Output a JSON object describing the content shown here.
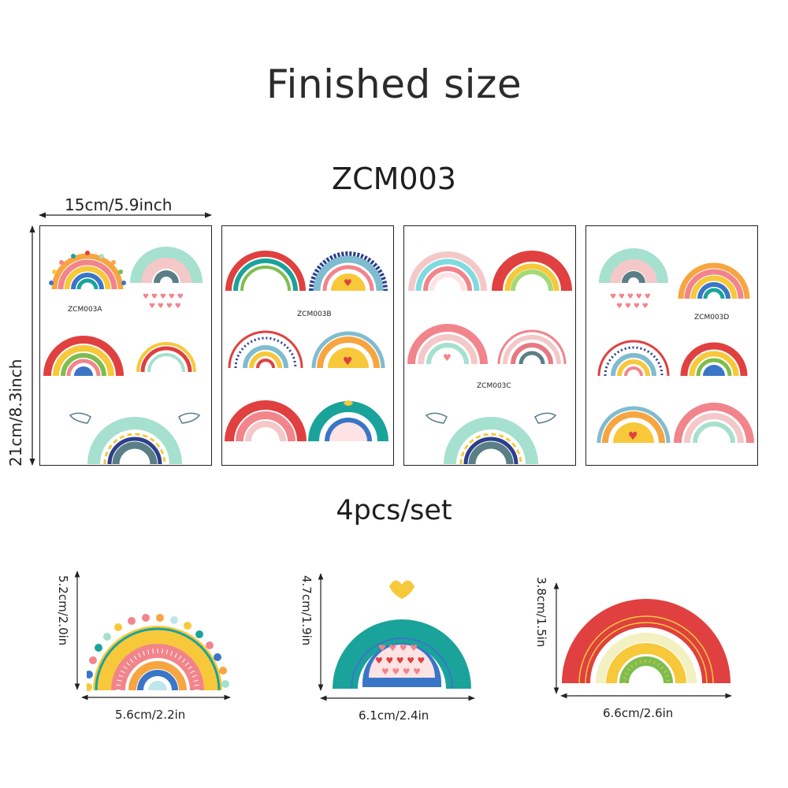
{
  "title": "Finished size",
  "product_code": "ZCM003",
  "sheet_width_label": "15cm/5.9inch",
  "sheet_height_label": "21cm/8.3inch",
  "sheets": [
    {
      "label": "ZCM003A"
    },
    {
      "label": "ZCM003B"
    },
    {
      "label": "ZCM003C"
    },
    {
      "label": "ZCM003D"
    }
  ],
  "set_label": "4pcs/set",
  "pieces": [
    {
      "height_label": "5.2cm/2.0in",
      "width_label": "5.6cm/2.2in"
    },
    {
      "height_label": "4.7cm/1.9in",
      "width_label": "6.1cm/2.4in"
    },
    {
      "height_label": "3.8cm/1.5in",
      "width_label": "6.6cm/2.6in"
    }
  ],
  "colors": {
    "red": "#e0403f",
    "orange": "#f7a541",
    "yellow": "#f7c83a",
    "pink": "#f2848b",
    "teal": "#1aa39a",
    "mint": "#a6e0cf",
    "blue": "#3a76c8",
    "slate": "#5a7f86",
    "green": "#7dbd4e",
    "navy": "#2d3e8c"
  }
}
